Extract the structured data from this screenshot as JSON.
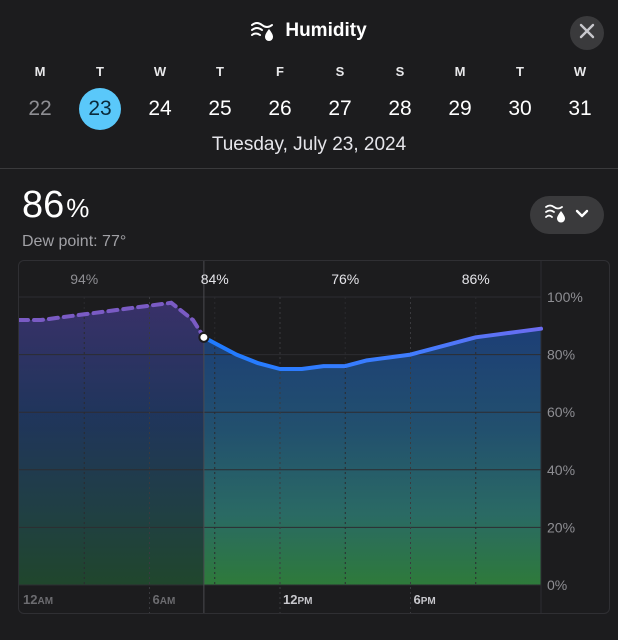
{
  "header": {
    "title": "Humidity",
    "title_icon": "humidity-icon",
    "close_icon": "close-icon"
  },
  "days": [
    {
      "dow": "M",
      "num": "22",
      "state": "past"
    },
    {
      "dow": "T",
      "num": "23",
      "state": "selected"
    },
    {
      "dow": "W",
      "num": "24",
      "state": "future"
    },
    {
      "dow": "T",
      "num": "25",
      "state": "future"
    },
    {
      "dow": "F",
      "num": "26",
      "state": "future"
    },
    {
      "dow": "S",
      "num": "27",
      "state": "future"
    },
    {
      "dow": "S",
      "num": "28",
      "state": "future"
    },
    {
      "dow": "M",
      "num": "29",
      "state": "future"
    },
    {
      "dow": "T",
      "num": "30",
      "state": "future"
    },
    {
      "dow": "W",
      "num": "31",
      "state": "future"
    }
  ],
  "selected_date": "Tuesday, July 23, 2024",
  "current": {
    "value": "86",
    "unit": "%",
    "dew_point": "Dew point: 77°"
  },
  "mode_button": {
    "icon": "humidity-icon",
    "chevron": "chevron-down-icon"
  },
  "colors": {
    "background": "#1c1c1e",
    "selected_day": "#5ac8fa",
    "past_line": "#7a5bc4",
    "future_line_start": "#1e7bff",
    "future_line_end": "#6c6cf0"
  },
  "chart_data": {
    "type": "line",
    "x_tick_labels": [
      "12AM",
      "6AM",
      "12PM",
      "6PM"
    ],
    "x_range_hours": [
      0,
      24
    ],
    "ylim": [
      0,
      100
    ],
    "y_tick_labels": [
      "100%",
      "80%",
      "60%",
      "40%",
      "20%",
      "0%"
    ],
    "y_ticks": [
      100,
      80,
      60,
      40,
      20,
      0
    ],
    "top_labels": [
      {
        "hour": 3,
        "text": "94%"
      },
      {
        "hour": 9,
        "text": "84%"
      },
      {
        "hour": 15,
        "text": "76%"
      },
      {
        "hour": 21,
        "text": "86%"
      }
    ],
    "current_hour": 8.5,
    "series": [
      {
        "x": [
          0,
          1,
          2,
          3,
          4,
          5,
          6,
          7,
          8,
          8.5,
          9,
          10,
          11,
          12,
          13,
          14,
          15,
          16,
          17,
          18,
          19,
          20,
          21,
          22,
          23,
          24
        ],
        "y": [
          92,
          92,
          93,
          94,
          95,
          96,
          97,
          98,
          92,
          86,
          84,
          80,
          77,
          75,
          75,
          76,
          76,
          78,
          79,
          80,
          82,
          84,
          86,
          87,
          88,
          89
        ]
      }
    ]
  }
}
